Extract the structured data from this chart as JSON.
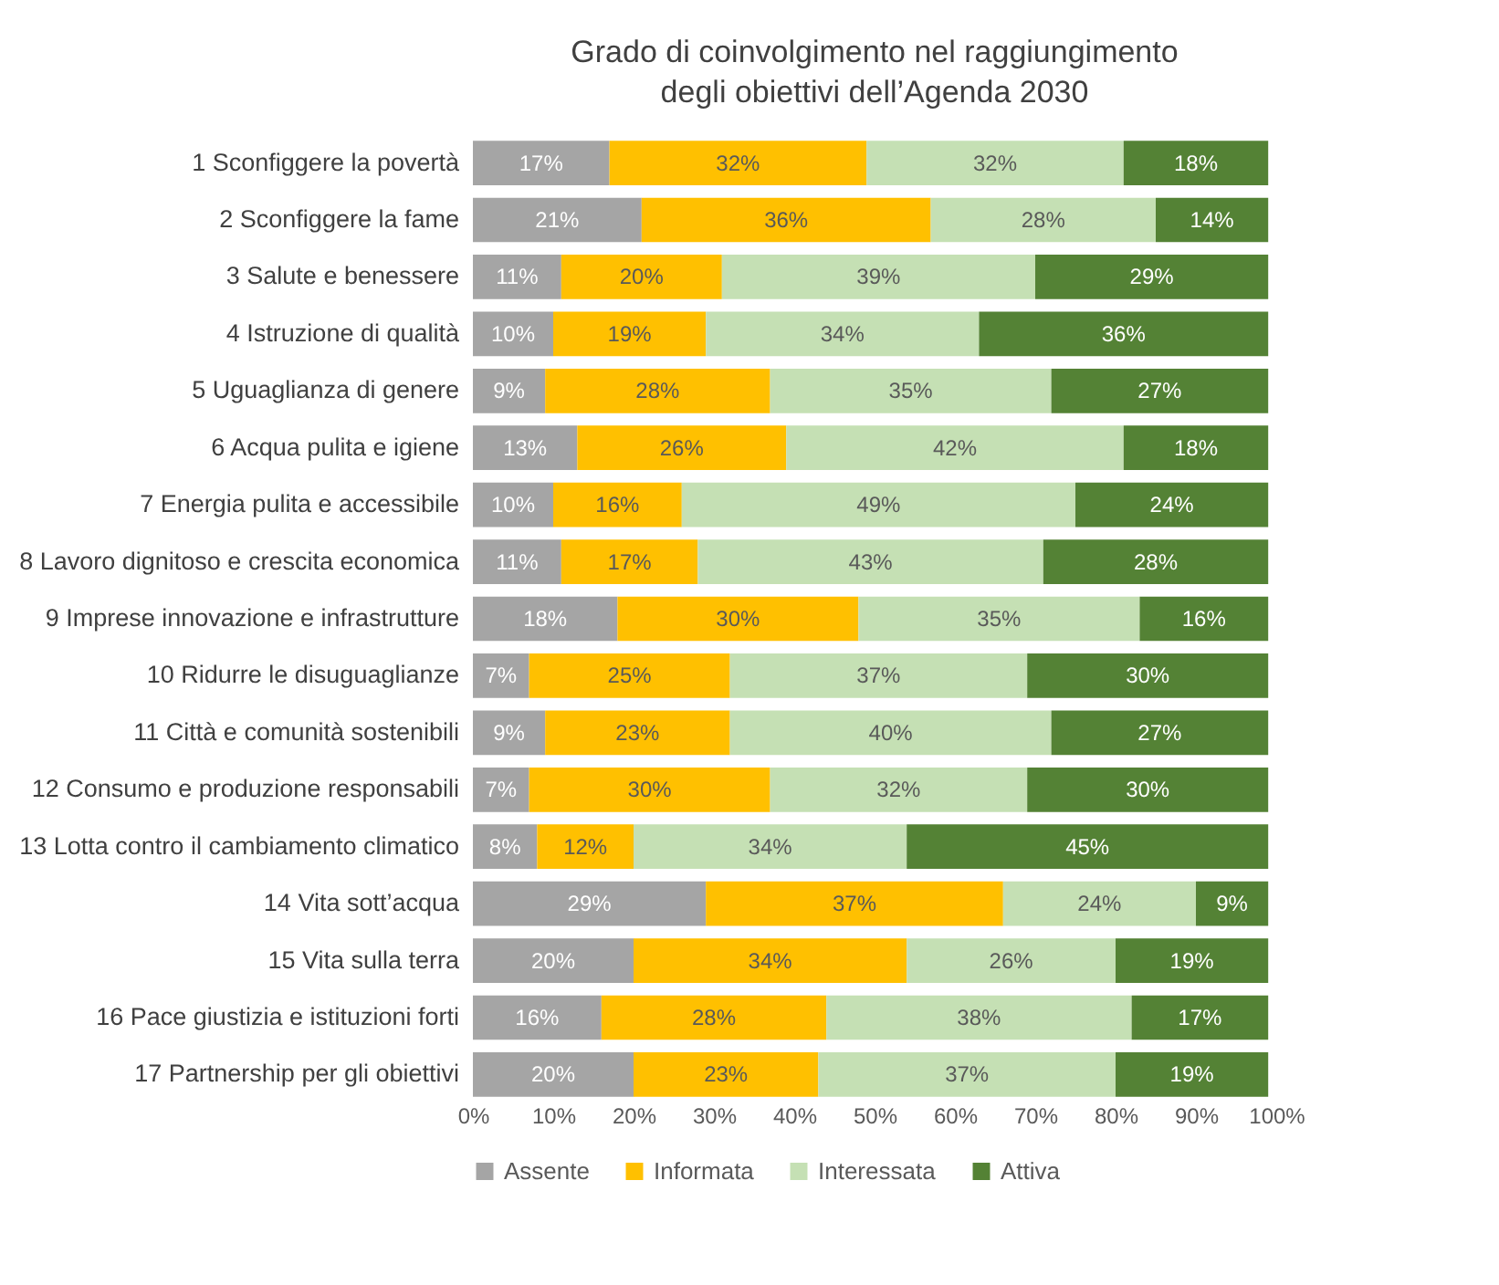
{
  "chart_data": {
    "type": "bar",
    "orientation": "horizontal",
    "stacked": true,
    "title": "Grado di coinvolgimento nel raggiungimento degli obiettivi dell’Agenda 2030",
    "categories": [
      "1 Sconfiggere la povertà",
      "2 Sconfiggere la fame",
      "3 Salute e benessere",
      "4 Istruzione di qualità",
      "5 Uguaglianza di genere",
      "6 Acqua pulita e igiene",
      "7 Energia pulita e accessibile",
      "8 Lavoro dignitoso e crescita economica",
      "9 Imprese innovazione e infrastrutture",
      "10 Ridurre le disuguaglianze",
      "11 Città e comunità sostenibili",
      "12 Consumo e produzione responsabili",
      "13 Lotta contro il cambiamento climatico",
      "14 Vita sott’acqua",
      "15 Vita sulla terra",
      "16 Pace giustizia e istituzioni forti",
      "17 Partnership per gli obiettivi"
    ],
    "series": [
      {
        "name": "Assente",
        "color": "#a5a5a5",
        "values": [
          17,
          21,
          11,
          10,
          9,
          13,
          10,
          11,
          18,
          7,
          9,
          7,
          8,
          29,
          20,
          16,
          20
        ],
        "value_labels": [
          "17%",
          "21%",
          "11%",
          "10%",
          "9%",
          "13%",
          "10%",
          "11%",
          "18%",
          "7%",
          "9%",
          "7%",
          "8%",
          "29%",
          "20%",
          "16%",
          "20%"
        ]
      },
      {
        "name": "Informata",
        "color": "#ffc000",
        "values": [
          32,
          36,
          20,
          19,
          28,
          26,
          16,
          17,
          30,
          25,
          23,
          30,
          12,
          37,
          34,
          28,
          23
        ],
        "value_labels": [
          "32%",
          "36%",
          "20%",
          "19%",
          "28%",
          "26%",
          "16%",
          "17%",
          "30%",
          "25%",
          "23%",
          "30%",
          "12%",
          "37%",
          "34%",
          "28%",
          "23%"
        ]
      },
      {
        "name": "Interessata",
        "color": "#c5e0b4",
        "values": [
          32,
          28,
          39,
          34,
          35,
          42,
          49,
          43,
          35,
          37,
          40,
          32,
          34,
          24,
          26,
          38,
          37
        ],
        "value_labels": [
          "32%",
          "28%",
          "39%",
          "34%",
          "35%",
          "42%",
          "49%",
          "43%",
          "35%",
          "37%",
          "40%",
          "32%",
          "34%",
          "24%",
          "26%",
          "38%",
          "37%"
        ]
      },
      {
        "name": "Attiva",
        "color": "#548235",
        "values": [
          18,
          14,
          29,
          36,
          27,
          18,
          24,
          28,
          16,
          30,
          27,
          30,
          45,
          9,
          19,
          17,
          19
        ],
        "value_labels": [
          "18%",
          "14%",
          "29%",
          "36%",
          "27%",
          "18%",
          "24%",
          "28%",
          "16%",
          "30%",
          "27%",
          "30%",
          "45%",
          "9%",
          "19%",
          "17%",
          "19%"
        ]
      }
    ],
    "xlim": [
      0,
      100
    ],
    "xticks": [
      {
        "value": 0,
        "label": "0%"
      },
      {
        "value": 10,
        "label": "10%"
      },
      {
        "value": 20,
        "label": "20%"
      },
      {
        "value": 30,
        "label": "30%"
      },
      {
        "value": 40,
        "label": "40%"
      },
      {
        "value": 50,
        "label": "50%"
      },
      {
        "value": 60,
        "label": "60%"
      },
      {
        "value": 70,
        "label": "70%"
      },
      {
        "value": 80,
        "label": "80%"
      },
      {
        "value": 90,
        "label": "90%"
      },
      {
        "value": 100,
        "label": "100%"
      }
    ],
    "grid": false,
    "legend": "bottom"
  }
}
